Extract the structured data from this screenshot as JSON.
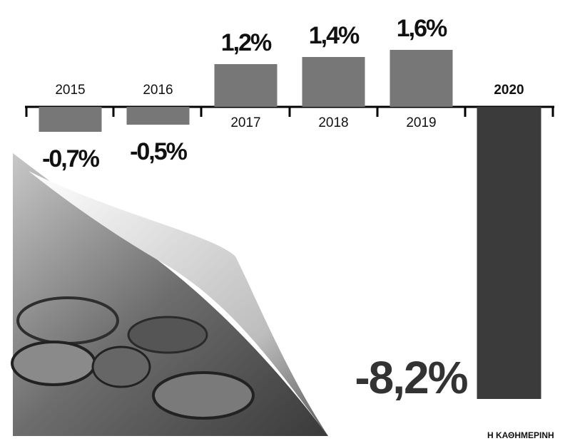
{
  "chart_data": {
    "type": "bar",
    "categories": [
      "2015",
      "2016",
      "2017",
      "2018",
      "2019",
      "2020"
    ],
    "values": [
      -0.7,
      -0.5,
      1.2,
      1.4,
      1.6,
      -8.2
    ],
    "value_labels": [
      "-0,7%",
      "-0,5%",
      "1,2%",
      "1,4%",
      "1,6%",
      "-8,2%"
    ],
    "colors": [
      "#777777",
      "#777777",
      "#777777",
      "#777777",
      "#777777",
      "#3b3b3b"
    ],
    "ylim": [
      -9.4,
      3
    ],
    "source": "Η ΚΑΘΗΜΕΡΙΝΗ"
  }
}
